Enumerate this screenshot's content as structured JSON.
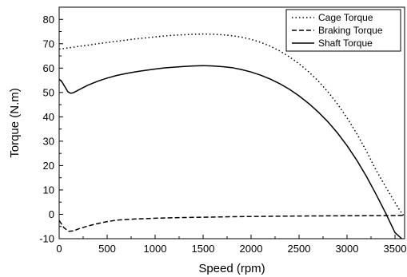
{
  "chart_data": {
    "type": "line",
    "title": "",
    "xlabel": "Speed (rpm)",
    "ylabel": "Torque (N.m)",
    "xlim": [
      0,
      3600
    ],
    "ylim": [
      -10,
      85
    ],
    "xticks": [
      0,
      500,
      1000,
      1500,
      2000,
      2500,
      3000,
      3500
    ],
    "yticks": [
      -10,
      0,
      10,
      20,
      30,
      40,
      50,
      60,
      70,
      80
    ],
    "grid": false,
    "legend_position": "top-right",
    "series": [
      {
        "name": "Cage Torque",
        "style": "dotted",
        "color": "#000000",
        "x": [
          0,
          100,
          200,
          300,
          400,
          500,
          600,
          700,
          800,
          900,
          1000,
          1100,
          1200,
          1300,
          1400,
          1500,
          1600,
          1700,
          1800,
          1900,
          2000,
          2100,
          2200,
          2300,
          2400,
          2500,
          2600,
          2700,
          2800,
          2900,
          3000,
          3100,
          3200,
          3300,
          3400,
          3500,
          3550,
          3600
        ],
        "y": [
          67.8,
          68.3,
          68.9,
          69.4,
          70.0,
          70.5,
          71.0,
          71.5,
          72.0,
          72.4,
          72.8,
          73.2,
          73.5,
          73.7,
          73.9,
          74.0,
          73.9,
          73.7,
          73.3,
          72.7,
          71.8,
          70.6,
          69.0,
          67.0,
          64.6,
          61.8,
          58.5,
          54.7,
          50.3,
          45.3,
          39.6,
          33.2,
          26.1,
          18.3,
          11.5,
          4.8,
          1.6,
          -1.0
        ]
      },
      {
        "name": "Braking Torque",
        "style": "dashed",
        "color": "#000000",
        "x": [
          0,
          50,
          100,
          150,
          200,
          300,
          400,
          500,
          600,
          700,
          800,
          1000,
          1200,
          1500,
          1800,
          2000,
          2500,
          3000,
          3500,
          3600
        ],
        "y": [
          -2.5,
          -5.5,
          -7.0,
          -6.8,
          -6.0,
          -4.8,
          -3.8,
          -3.0,
          -2.4,
          -2.1,
          -1.9,
          -1.6,
          -1.4,
          -1.2,
          -1.0,
          -0.9,
          -0.7,
          -0.6,
          -0.5,
          -0.4
        ]
      },
      {
        "name": "Shaft Torque",
        "style": "solid",
        "color": "#000000",
        "x": [
          0,
          30,
          60,
          90,
          120,
          150,
          200,
          300,
          400,
          500,
          600,
          700,
          800,
          900,
          1000,
          1100,
          1200,
          1300,
          1400,
          1500,
          1600,
          1700,
          1800,
          1900,
          2000,
          2100,
          2200,
          2300,
          2400,
          2500,
          2600,
          2700,
          2800,
          2900,
          3000,
          3100,
          3200,
          3300,
          3400,
          3500,
          3570
        ],
        "y": [
          55.5,
          54.3,
          52.3,
          50.3,
          49.7,
          49.9,
          51.0,
          53.0,
          54.6,
          55.9,
          57.0,
          57.8,
          58.5,
          59.1,
          59.6,
          60.1,
          60.4,
          60.7,
          60.9,
          61.0,
          60.9,
          60.6,
          60.2,
          59.4,
          58.4,
          57.1,
          55.5,
          53.6,
          51.3,
          48.6,
          45.5,
          42.0,
          38.0,
          33.4,
          28.2,
          22.3,
          15.7,
          8.4,
          0.7,
          -7.5,
          -10.0
        ]
      }
    ]
  }
}
